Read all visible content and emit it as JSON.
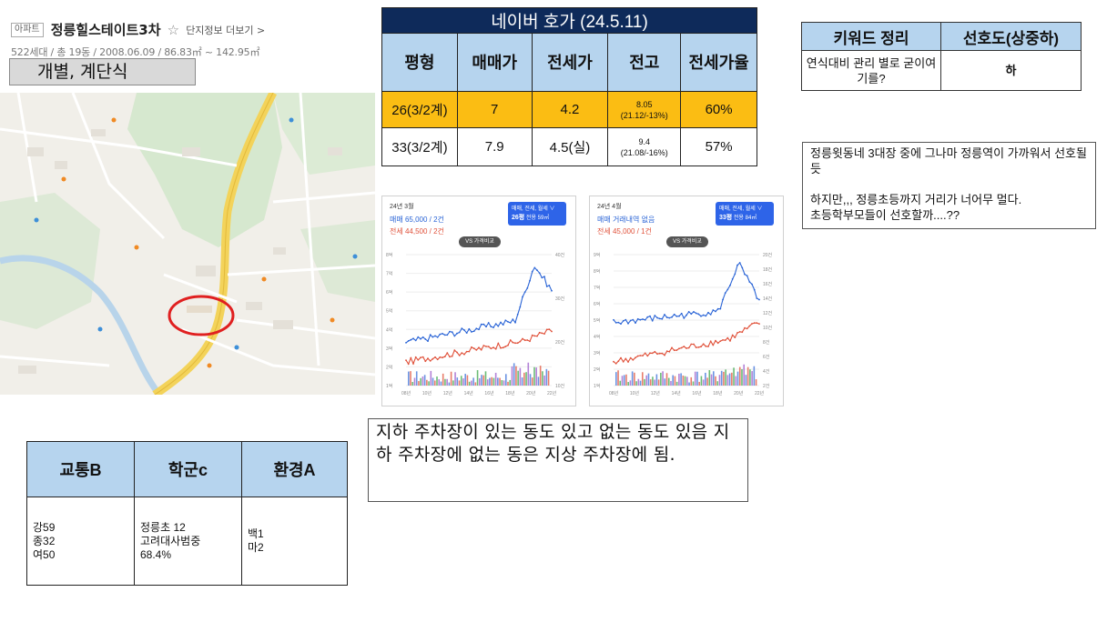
{
  "apt": {
    "type_badge": "아파트",
    "name": "정릉힐스테이트3차",
    "star": "☆",
    "more_link": "단지정보 더보기 >",
    "meta": "522세대 / 총 19동 / 2008.06.09 / 86.83㎡ ~ 142.95㎡",
    "note": "개별, 계단식"
  },
  "hoga": {
    "title": "네이버 호가 (24.5.11)",
    "headers": [
      "평형",
      "매매가",
      "전세가",
      "전고",
      "전세가율"
    ],
    "rows": [
      {
        "pyeong": "26(3/2계)",
        "sale": "7",
        "jeonse": "4.2",
        "high": "8.05",
        "high_sub": "(21.12/-13%)",
        "rate": "60%",
        "highlight": true
      },
      {
        "pyeong": "33(3/2계)",
        "sale": "7.9",
        "jeonse": "4.5(실)",
        "high": "9.4",
        "high_sub": "(21.08/-16%)",
        "rate": "57%",
        "highlight": false
      }
    ],
    "highlight_color": "#fbbd13"
  },
  "keyword": {
    "headers": [
      "키워드 정리",
      "선호도(상중하)"
    ],
    "row": {
      "keyword": "연식대비 관리 별로 굳이여기를?",
      "grade": "하"
    }
  },
  "comment": {
    "lines": [
      "정릉윗동네 3대장 중에 그나마 정릉역이 가까워서 선호될 듯",
      "하지만,,, 정릉초등까지 거리가 너어무 멀다.",
      "초등학부모들이 선호할까....??"
    ]
  },
  "cards": [
    {
      "month": "24년 3월",
      "sale": "매매 65,000 / 2건",
      "jeonse": "전세 44,500 / 2건",
      "pill_top": "매매, 전세, 월세 ∨",
      "pill_size": "26평",
      "pill_area": "전용 59㎡",
      "vs": "VS 가격비교",
      "x_ticks": [
        "08년",
        "10년",
        "12년",
        "14년",
        "16년",
        "18년",
        "20년",
        "22년"
      ],
      "y_left": [
        "8억",
        "7억",
        "6억",
        "5억",
        "4억",
        "3억",
        "2억",
        "1억"
      ],
      "y_right": [
        "40건",
        "30건",
        "20건",
        "10건"
      ]
    },
    {
      "month": "24년 4월",
      "sale": "매매 거래내역 없음",
      "jeonse": "전세 45,000 / 1건",
      "pill_top": "매매, 전세, 월세 ∨",
      "pill_size": "33평",
      "pill_area": "전용 84㎡",
      "vs": "VS 가격비교",
      "x_ticks": [
        "08년",
        "10년",
        "12년",
        "14년",
        "16년",
        "18년",
        "20년",
        "22년"
      ],
      "y_left": [
        "9억",
        "8억",
        "7억",
        "6억",
        "5억",
        "4억",
        "3억",
        "2억",
        "1억"
      ],
      "y_right": [
        "20건",
        "18건",
        "16건",
        "14건",
        "12건",
        "10건",
        "8건",
        "6건",
        "4건",
        "2건"
      ]
    }
  ],
  "parking": "지하 주차장이 있는 동도 있고 없는 동도 있음 지하 주차장에 없는 동은 지상 주차장에 됨.",
  "grade": {
    "headers": [
      "교통B",
      "학군c",
      "환경A"
    ],
    "traffic": [
      "강59",
      "종32",
      "여50"
    ],
    "school": [
      "정릉초 12",
      "고려대사범중",
      "68.4%"
    ],
    "env": [
      "백1",
      "마2"
    ]
  },
  "colors": {
    "header_blue": "#b6d4ee",
    "title_navy": "#0e2a5a",
    "sale_line": "#2a64d6",
    "jeonse_line": "#e0513a",
    "map_marker": "#e02020"
  },
  "icons": {
    "star": "star-icon"
  }
}
